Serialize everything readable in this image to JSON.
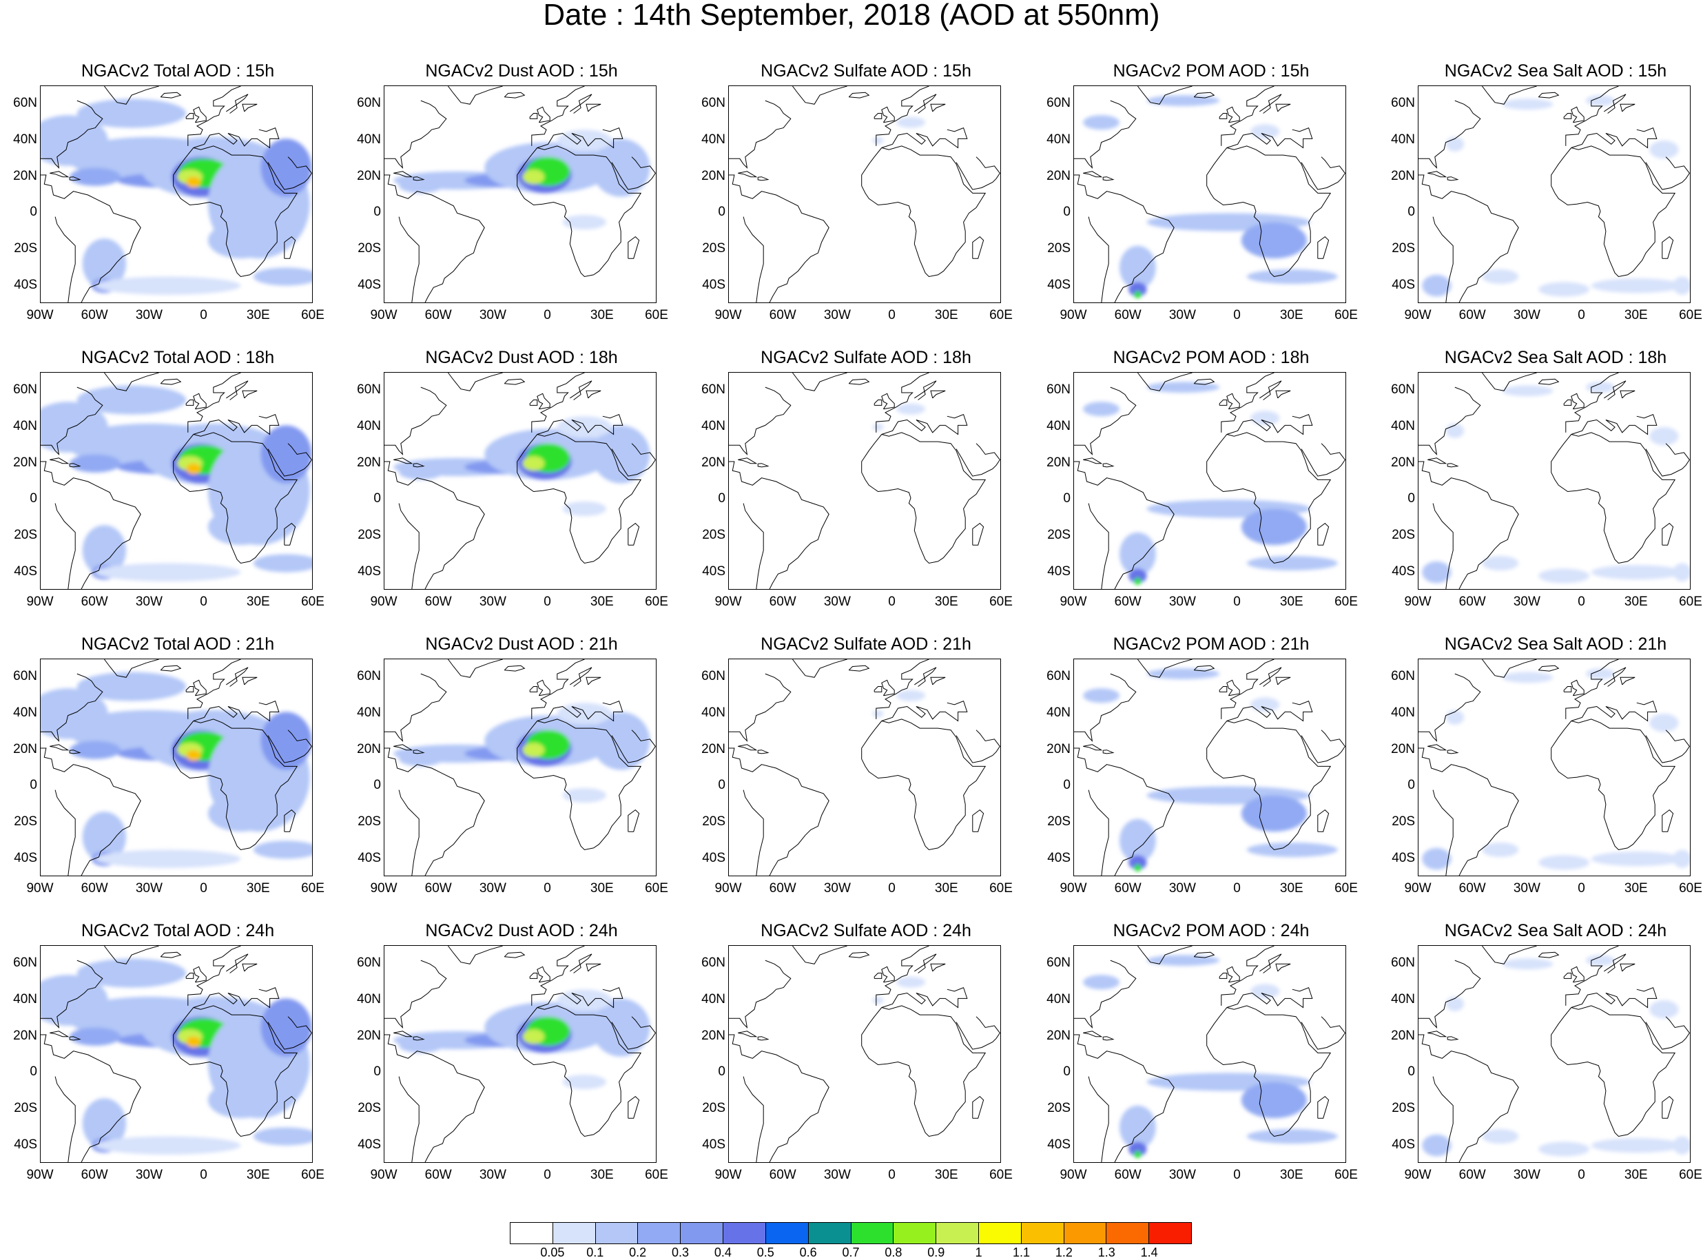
{
  "title": "Date : 14th September, 2018 (AOD at 550nm)",
  "panels": [
    {
      "title": "NGACv2 Total AOD : 15h",
      "species": "total"
    },
    {
      "title": "NGACv2 Dust AOD : 15h",
      "species": "dust"
    },
    {
      "title": "NGACv2 Sulfate AOD : 15h",
      "species": "sulfate"
    },
    {
      "title": "NGACv2 POM AOD : 15h",
      "species": "pom"
    },
    {
      "title": "NGACv2 Sea Salt AOD : 15h",
      "species": "seasalt"
    },
    {
      "title": "NGACv2 Total AOD : 18h",
      "species": "total"
    },
    {
      "title": "NGACv2 Dust AOD : 18h",
      "species": "dust"
    },
    {
      "title": "NGACv2 Sulfate AOD : 18h",
      "species": "sulfate"
    },
    {
      "title": "NGACv2 POM AOD : 18h",
      "species": "pom"
    },
    {
      "title": "NGACv2 Sea Salt AOD : 18h",
      "species": "seasalt"
    },
    {
      "title": "NGACv2 Total AOD : 21h",
      "species": "total"
    },
    {
      "title": "NGACv2 Dust AOD : 21h",
      "species": "dust"
    },
    {
      "title": "NGACv2 Sulfate AOD : 21h",
      "species": "sulfate"
    },
    {
      "title": "NGACv2 POM AOD : 21h",
      "species": "pom"
    },
    {
      "title": "NGACv2 Sea Salt AOD : 21h",
      "species": "seasalt"
    },
    {
      "title": "NGACv2 Total AOD : 24h",
      "species": "total"
    },
    {
      "title": "NGACv2 Dust AOD : 24h",
      "species": "dust"
    },
    {
      "title": "NGACv2 Sulfate AOD : 24h",
      "species": "sulfate"
    },
    {
      "title": "NGACv2 POM AOD : 24h",
      "species": "pom"
    },
    {
      "title": "NGACv2 Sea Salt  AOD : 24h",
      "species": "seasalt"
    }
  ],
  "lat_ticks": [
    "60N",
    "40N",
    "20N",
    "0",
    "20S",
    "40S"
  ],
  "lon_ticks": [
    "90W",
    "60W",
    "30W",
    "0",
    "30E",
    "60E"
  ],
  "map_extent": {
    "lon": [
      -90,
      60
    ],
    "lat": [
      -50,
      70
    ]
  },
  "colorbar": {
    "labels": [
      "0.05",
      "0.1",
      "0.2",
      "0.3",
      "0.4",
      "0.5",
      "0.6",
      "0.7",
      "0.8",
      "0.9",
      "1",
      "1.1",
      "1.2",
      "1.3",
      "1.4"
    ],
    "colors": [
      "#ffffff",
      "#d7e2fb",
      "#b4c7f7",
      "#92aaf3",
      "#8299f0",
      "#6673e8",
      "#0a66f0",
      "#0a9090",
      "#2ee02e",
      "#96f01e",
      "#c8f050",
      "#fafa00",
      "#fac000",
      "#fa9a00",
      "#fa6a00",
      "#fa1e00"
    ]
  }
}
